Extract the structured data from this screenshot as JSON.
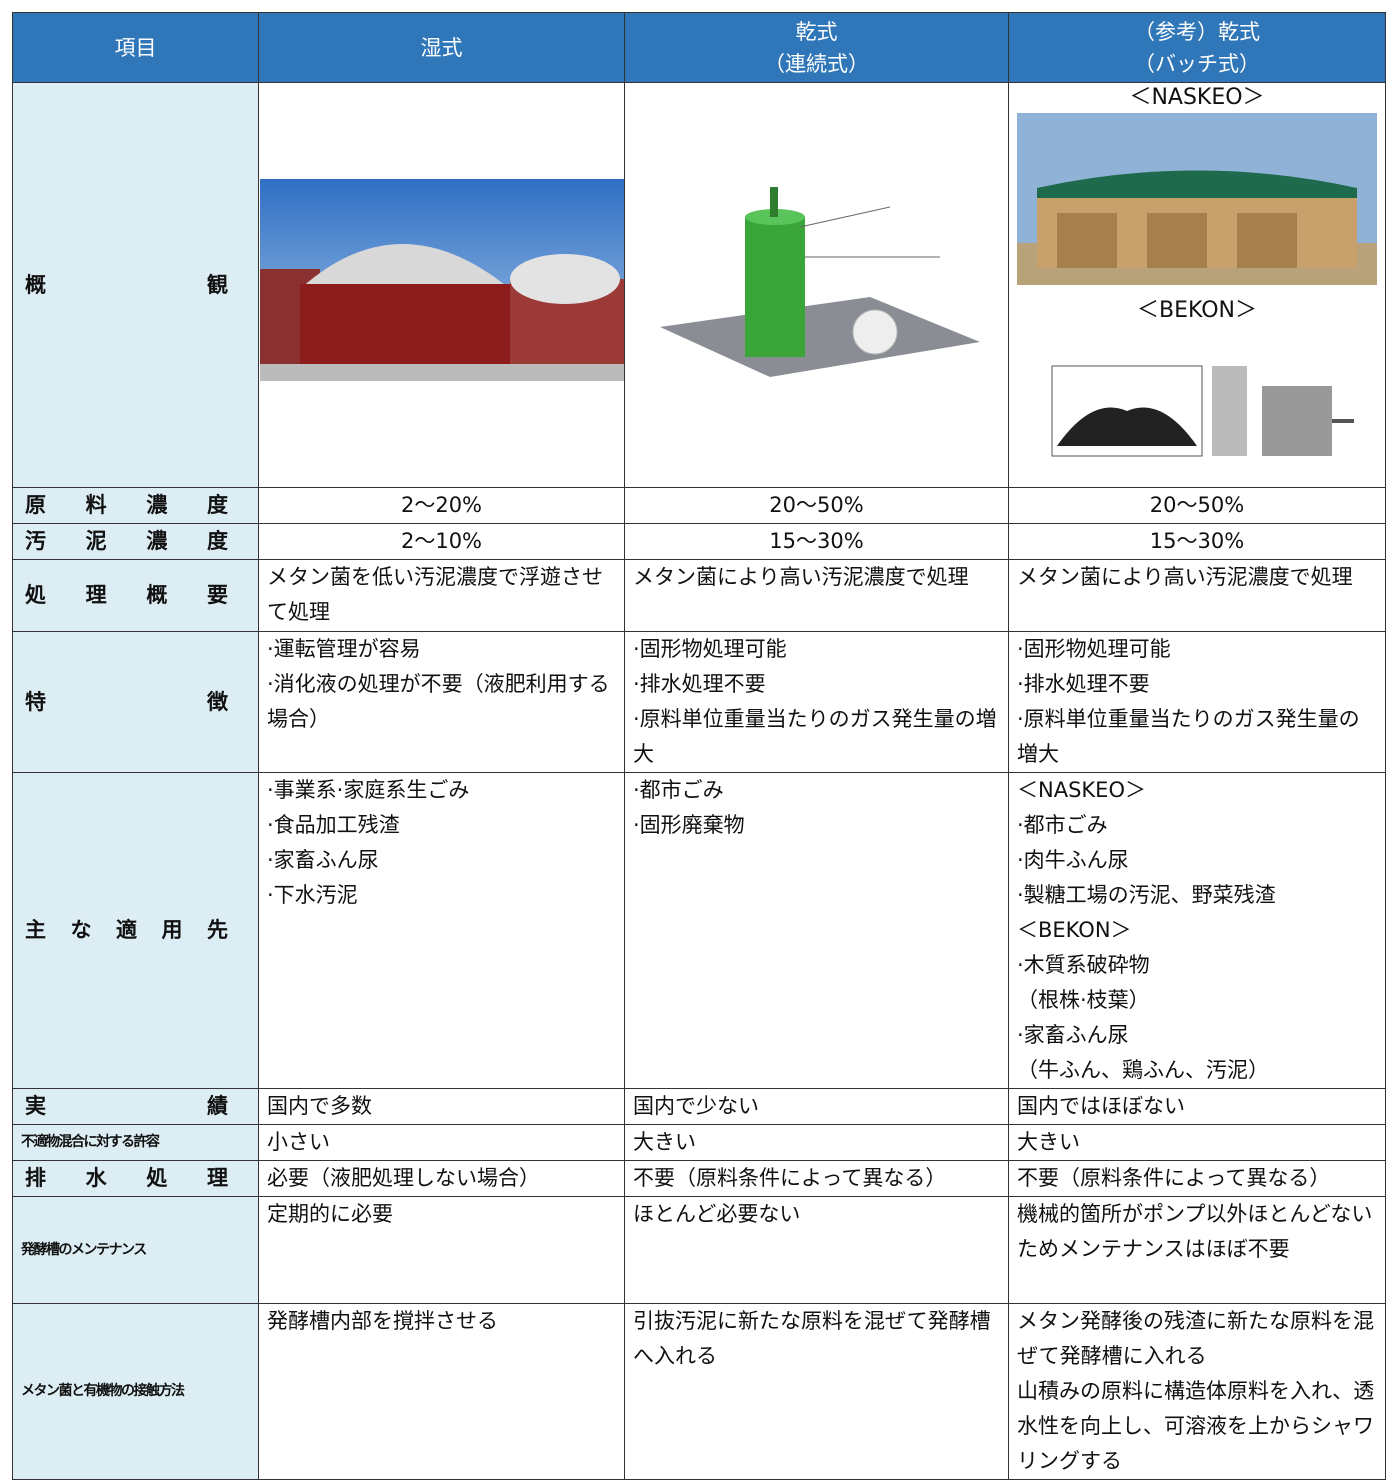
{
  "header": [
    [
      "項目"
    ],
    [
      "湿式"
    ],
    [
      "乾式",
      "（連続式）"
    ],
    [
      "（参考）乾式",
      "（バッチ式）"
    ]
  ],
  "overview": {
    "label": "概観",
    "captions": [
      "＜NASKEO＞",
      "＜BEKON＞"
    ]
  },
  "rows": [
    {
      "label": "原料濃度",
      "cells": [
        [
          "2～20%"
        ],
        [
          "20～50%"
        ],
        [
          "20～50%"
        ]
      ]
    },
    {
      "label": "汚泥濃度",
      "cells": [
        [
          "2～10%"
        ],
        [
          "15～30%"
        ],
        [
          "15～30%"
        ]
      ]
    },
    {
      "label": "処理概要",
      "cells": [
        [
          "メタン菌を低い汚泥濃度で浮遊させて処理"
        ],
        [
          "メタン菌により高い汚泥濃度で処理"
        ],
        [
          "メタン菌により高い汚泥濃度で処理"
        ]
      ]
    },
    {
      "label": "特徴",
      "cells": [
        [
          "·運転管理が容易",
          "·消化液の処理が不要（液肥利用する場合）"
        ],
        [
          "·固形物処理可能",
          "·排水処理不要",
          "·原料単位重量当たりのガス発生量の増大"
        ],
        [
          "·固形物処理可能",
          "·排水処理不要",
          "·原料単位重量当たりのガス発生量の増大"
        ]
      ]
    },
    {
      "label": "主な適用先",
      "cells": [
        [
          "·事業系·家庭系生ごみ",
          "·食品加工残渣",
          "·家畜ふん尿",
          "·下水汚泥"
        ],
        [
          "·都市ごみ",
          "·固形廃棄物"
        ],
        [
          "＜NASKEO＞",
          "·都市ごみ",
          "·肉牛ふん尿",
          "·製糖工場の汚泥、野菜残渣",
          "＜BEKON＞",
          "·木質系破砕物",
          "（根株·枝葉）",
          "·家畜ふん尿",
          "（牛ふん、鶏ふん、汚泥）"
        ]
      ]
    },
    {
      "label": "実績",
      "cells": [
        [
          "国内で多数"
        ],
        [
          "国内で少ない"
        ],
        [
          "国内ではほぼない"
        ]
      ]
    },
    {
      "label": "不適物混合に対する許容",
      "cells": [
        [
          "小さい"
        ],
        [
          "大きい"
        ],
        [
          "大きい"
        ]
      ]
    },
    {
      "label": "排水処理",
      "cells": [
        [
          "必要（液肥処理しない場合）"
        ],
        [
          "不要（原料条件によって異なる）"
        ],
        [
          "不要（原料条件によって異なる）"
        ]
      ]
    },
    {
      "label": "発酵槽のメンテナンス",
      "cells": [
        [
          "定期的に必要"
        ],
        [
          "ほとんど必要ない"
        ],
        [
          "機械的箇所がポンプ以外ほとんどないためメンテナンスはほぼ不要"
        ]
      ]
    },
    {
      "label": "メタン菌と有機物の接触方法",
      "cells": [
        [
          "発酵槽内部を撹拌させる"
        ],
        [
          "引抜汚泥に新たな原料を混ぜて発酵槽へ入れる"
        ],
        [
          "メタン発酵後の残渣に新たな原料を混ぜて発酵槽に入れる",
          "山積みの原料に構造体原料を入れ、透水性を向上し、可溶液を上からシャワリングする"
        ]
      ]
    }
  ]
}
